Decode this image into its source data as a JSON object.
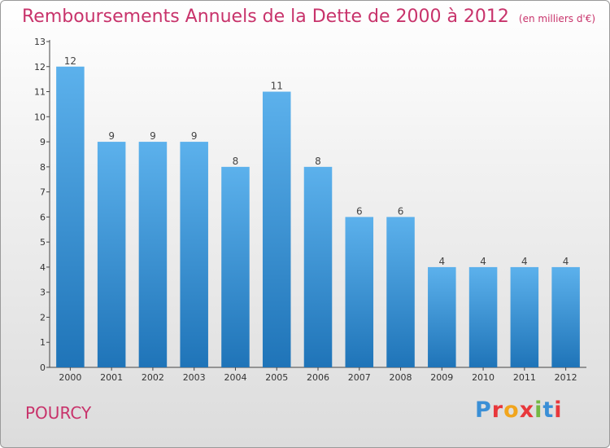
{
  "title": "Remboursements Annuels de la Dette de 2000 à 2012",
  "unit": "(en milliers d'€)",
  "place": "POURCY",
  "logo": "Proxiti",
  "colors": {
    "title": "#c8336b",
    "bar_top": "#5aaeea",
    "bar_bottom": "#1f74b8"
  },
  "chart_data": {
    "type": "bar",
    "categories": [
      "2000",
      "2001",
      "2002",
      "2003",
      "2004",
      "2005",
      "2006",
      "2007",
      "2008",
      "2009",
      "2010",
      "2011",
      "2012"
    ],
    "values": [
      12,
      9,
      9,
      9,
      8,
      11,
      8,
      6,
      6,
      4,
      4,
      4,
      4
    ],
    "ylim": [
      0,
      13
    ],
    "yticks": [
      0,
      1,
      2,
      3,
      4,
      5,
      6,
      7,
      8,
      9,
      10,
      11,
      12,
      13
    ],
    "grid": false,
    "legend": "none"
  }
}
